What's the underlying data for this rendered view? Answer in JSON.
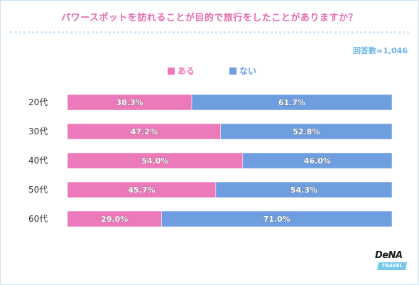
{
  "header": {
    "title": "パワースポットを訪れることが目的で旅行をしたことがありますか？",
    "sample_size": "回答数=1,046"
  },
  "logo": {
    "brand": "DeNA",
    "tag": "TRAVEL"
  },
  "colors": {
    "yes": "#ec79ba",
    "no": "#6f9ee0",
    "title": "#e36ab0",
    "sample": "#6ab3e6"
  },
  "chart_data": {
    "type": "bar",
    "orientation": "horizontal",
    "stacked": true,
    "percent": true,
    "title": "パワースポットを訪れることが目的で旅行をしたことがありますか？",
    "categories": [
      "20代",
      "30代",
      "40代",
      "50代",
      "60代"
    ],
    "series": [
      {
        "name": "ある",
        "values": [
          38.3,
          47.2,
          54.0,
          45.7,
          29.0
        ],
        "labels": [
          "38.3%",
          "47.2%",
          "54.0%",
          "45.7%",
          "29.0%"
        ]
      },
      {
        "name": "ない",
        "values": [
          61.7,
          52.8,
          46.0,
          54.3,
          71.0
        ],
        "labels": [
          "61.7%",
          "52.8%",
          "46.0%",
          "54.3%",
          "71.0%"
        ]
      }
    ],
    "xlim": [
      0,
      100
    ],
    "legend_position": "top-center",
    "grid": false
  }
}
